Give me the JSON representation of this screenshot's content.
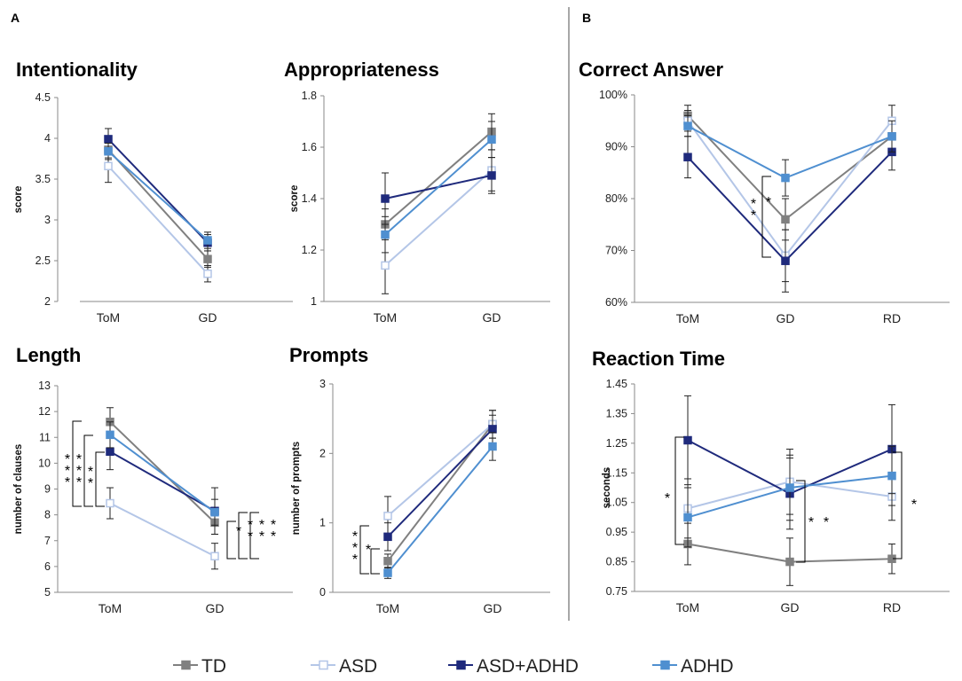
{
  "panel_labels": {
    "a": "A",
    "b": "B"
  },
  "colors": {
    "TD": "#808080",
    "ASD": "#b4c6e7",
    "ASD+ADHD": "#1f2a7c",
    "ADHD": "#4f8fd0"
  },
  "legend": [
    "TD",
    "ASD",
    "ASD+ADHD",
    "ADHD"
  ],
  "chart_data": [
    {
      "id": "intentionality",
      "type": "line",
      "title": "Intentionality",
      "ylabel": "score",
      "ylim": [
        2,
        4.5
      ],
      "yticks": [
        "2",
        "2.5",
        "3",
        "3.5",
        "4",
        "4.5"
      ],
      "categories": [
        "ToM",
        "GD"
      ],
      "series": [
        {
          "name": "TD",
          "values": [
            3.86,
            2.52
          ],
          "err": [
            0.1,
            0.1
          ]
        },
        {
          "name": "ASD",
          "values": [
            3.66,
            2.34
          ],
          "err": [
            0.2,
            0.1
          ]
        },
        {
          "name": "ASD+ADHD",
          "values": [
            3.99,
            2.72
          ],
          "err": [
            0.13,
            0.1
          ]
        },
        {
          "name": "ADHD",
          "values": [
            3.84,
            2.75
          ],
          "err": [
            0.1,
            0.1
          ]
        }
      ],
      "stars": []
    },
    {
      "id": "appropriateness",
      "type": "line",
      "title": "Appropriateness",
      "ylabel": "score",
      "ylim": [
        1,
        1.8
      ],
      "yticks": [
        "1",
        "1.2",
        "1.4",
        "1.6",
        "1.8"
      ],
      "categories": [
        "ToM",
        "GD"
      ],
      "series": [
        {
          "name": "TD",
          "values": [
            1.3,
            1.66
          ],
          "err": [
            0.06,
            0.07
          ]
        },
        {
          "name": "ASD",
          "values": [
            1.14,
            1.51
          ],
          "err": [
            0.11,
            0.08
          ]
        },
        {
          "name": "ASD+ADHD",
          "values": [
            1.4,
            1.49
          ],
          "err": [
            0.1,
            0.07
          ]
        },
        {
          "name": "ADHD",
          "values": [
            1.26,
            1.63
          ],
          "err": [
            0.07,
            0.07
          ]
        }
      ],
      "stars": []
    },
    {
      "id": "correct",
      "type": "line",
      "title": "Correct Answer",
      "ylabel": "",
      "ylim": [
        0.6,
        1.0
      ],
      "yticks": [
        "60%",
        "70%",
        "80%",
        "90%",
        "100%"
      ],
      "categories": [
        "ToM",
        "GD",
        "RD"
      ],
      "series": [
        {
          "name": "TD",
          "values": [
            0.96,
            0.76,
            0.92
          ],
          "err": [
            0.02,
            0.04,
            0.03
          ]
        },
        {
          "name": "ASD",
          "values": [
            0.95,
            0.69,
            0.95
          ],
          "err": [
            0.02,
            0.05,
            0.03
          ]
        },
        {
          "name": "ASD+ADHD",
          "values": [
            0.88,
            0.68,
            0.89
          ],
          "err": [
            0.04,
            0.06,
            0.035
          ]
        },
        {
          "name": "ADHD",
          "values": [
            0.94,
            0.84,
            0.92
          ],
          "err": [
            0.02,
            0.035,
            0.03
          ]
        }
      ],
      "stars": [
        "*",
        "*",
        "*"
      ]
    },
    {
      "id": "length",
      "type": "line",
      "title": "Length",
      "ylabel": "number of clauses",
      "ylim": [
        5,
        13
      ],
      "yticks": [
        "5",
        "6",
        "7",
        "8",
        "9",
        "10",
        "11",
        "12",
        "13"
      ],
      "categories": [
        "ToM",
        "GD"
      ],
      "series": [
        {
          "name": "TD",
          "values": [
            11.6,
            7.7
          ],
          "err": [
            0.55,
            0.45
          ]
        },
        {
          "name": "ASD",
          "values": [
            8.45,
            6.4
          ],
          "err": [
            0.6,
            0.5
          ]
        },
        {
          "name": "ASD+ADHD",
          "values": [
            10.45,
            8.15
          ],
          "err": [
            0.7,
            0.9
          ]
        },
        {
          "name": "ADHD",
          "values": [
            11.1,
            8.1
          ],
          "err": [
            0.5,
            0.5
          ]
        }
      ],
      "stars": [
        "*",
        "*",
        "*",
        "*",
        "*",
        "*",
        "*",
        "*",
        "*",
        "*",
        "*",
        "*",
        "*",
        "*",
        "*"
      ]
    },
    {
      "id": "prompts",
      "type": "line",
      "title": "Prompts",
      "ylabel": "number of prompts",
      "ylim": [
        0,
        3
      ],
      "yticks": [
        "0",
        "1",
        "2",
        "3"
      ],
      "categories": [
        "ToM",
        "GD"
      ],
      "series": [
        {
          "name": "TD",
          "values": [
            0.45,
            2.42
          ],
          "err": [
            0.1,
            0.2
          ]
        },
        {
          "name": "ASD",
          "values": [
            1.1,
            2.42
          ],
          "err": [
            0.28,
            0.2
          ]
        },
        {
          "name": "ASD+ADHD",
          "values": [
            0.8,
            2.35
          ],
          "err": [
            0.2,
            0.2
          ]
        },
        {
          "name": "ADHD",
          "values": [
            0.28,
            2.1
          ],
          "err": [
            0.08,
            0.2
          ]
        }
      ],
      "stars": [
        "*",
        "*",
        "*",
        "*"
      ]
    },
    {
      "id": "reaction",
      "type": "line",
      "title": "Reaction Time",
      "ylabel": "seconds",
      "ylim": [
        0.75,
        1.45
      ],
      "yticks": [
        "0.75",
        "0.85",
        "0.95",
        "1.05",
        "1.15",
        "1.25",
        "1.35",
        "1.45"
      ],
      "categories": [
        "ToM",
        "GD",
        "RD"
      ],
      "series": [
        {
          "name": "TD",
          "values": [
            0.91,
            0.85,
            0.86
          ],
          "err": [
            0.07,
            0.08,
            0.05
          ]
        },
        {
          "name": "ASD",
          "values": [
            1.03,
            1.12,
            1.07
          ],
          "err": [
            0.1,
            0.11,
            0.08
          ]
        },
        {
          "name": "ASD+ADHD",
          "values": [
            1.26,
            1.08,
            1.23
          ],
          "err": [
            0.15,
            0.12,
            0.15
          ]
        },
        {
          "name": "ADHD",
          "values": [
            1.0,
            1.1,
            1.14
          ],
          "err": [
            0.1,
            0.11,
            0.1
          ]
        }
      ],
      "stars": [
        "*",
        "*",
        "*",
        "*"
      ]
    }
  ]
}
